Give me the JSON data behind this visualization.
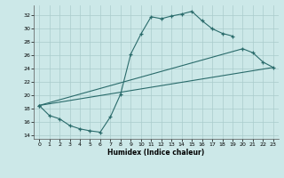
{
  "xlabel": "Humidex (Indice chaleur)",
  "bg_color": "#cce8e8",
  "grid_color": "#aacccc",
  "line_color": "#2a6b6b",
  "xlim": [
    -0.5,
    23.5
  ],
  "ylim": [
    13.5,
    33.5
  ],
  "xticks": [
    0,
    1,
    2,
    3,
    4,
    5,
    6,
    7,
    8,
    9,
    10,
    11,
    12,
    13,
    14,
    15,
    16,
    17,
    18,
    19,
    20,
    21,
    22,
    23
  ],
  "yticks": [
    14,
    16,
    18,
    20,
    22,
    24,
    26,
    28,
    30,
    32
  ],
  "line1_x": [
    0,
    1,
    2,
    3,
    4,
    5,
    6,
    7,
    8,
    9,
    10,
    11,
    12,
    13,
    14,
    15,
    16,
    17,
    18,
    19
  ],
  "line1_y": [
    18.5,
    17.0,
    16.5,
    15.5,
    15.0,
    14.7,
    14.5,
    16.8,
    20.2,
    26.2,
    29.2,
    31.8,
    31.5,
    31.9,
    32.2,
    32.6,
    31.2,
    30.0,
    29.3,
    28.9
  ],
  "line2_x": [
    0,
    20,
    21,
    22,
    23
  ],
  "line2_y": [
    18.5,
    27.0,
    26.4,
    25.0,
    24.2
  ],
  "line3_x": [
    0,
    23
  ],
  "line3_y": [
    18.5,
    24.2
  ]
}
